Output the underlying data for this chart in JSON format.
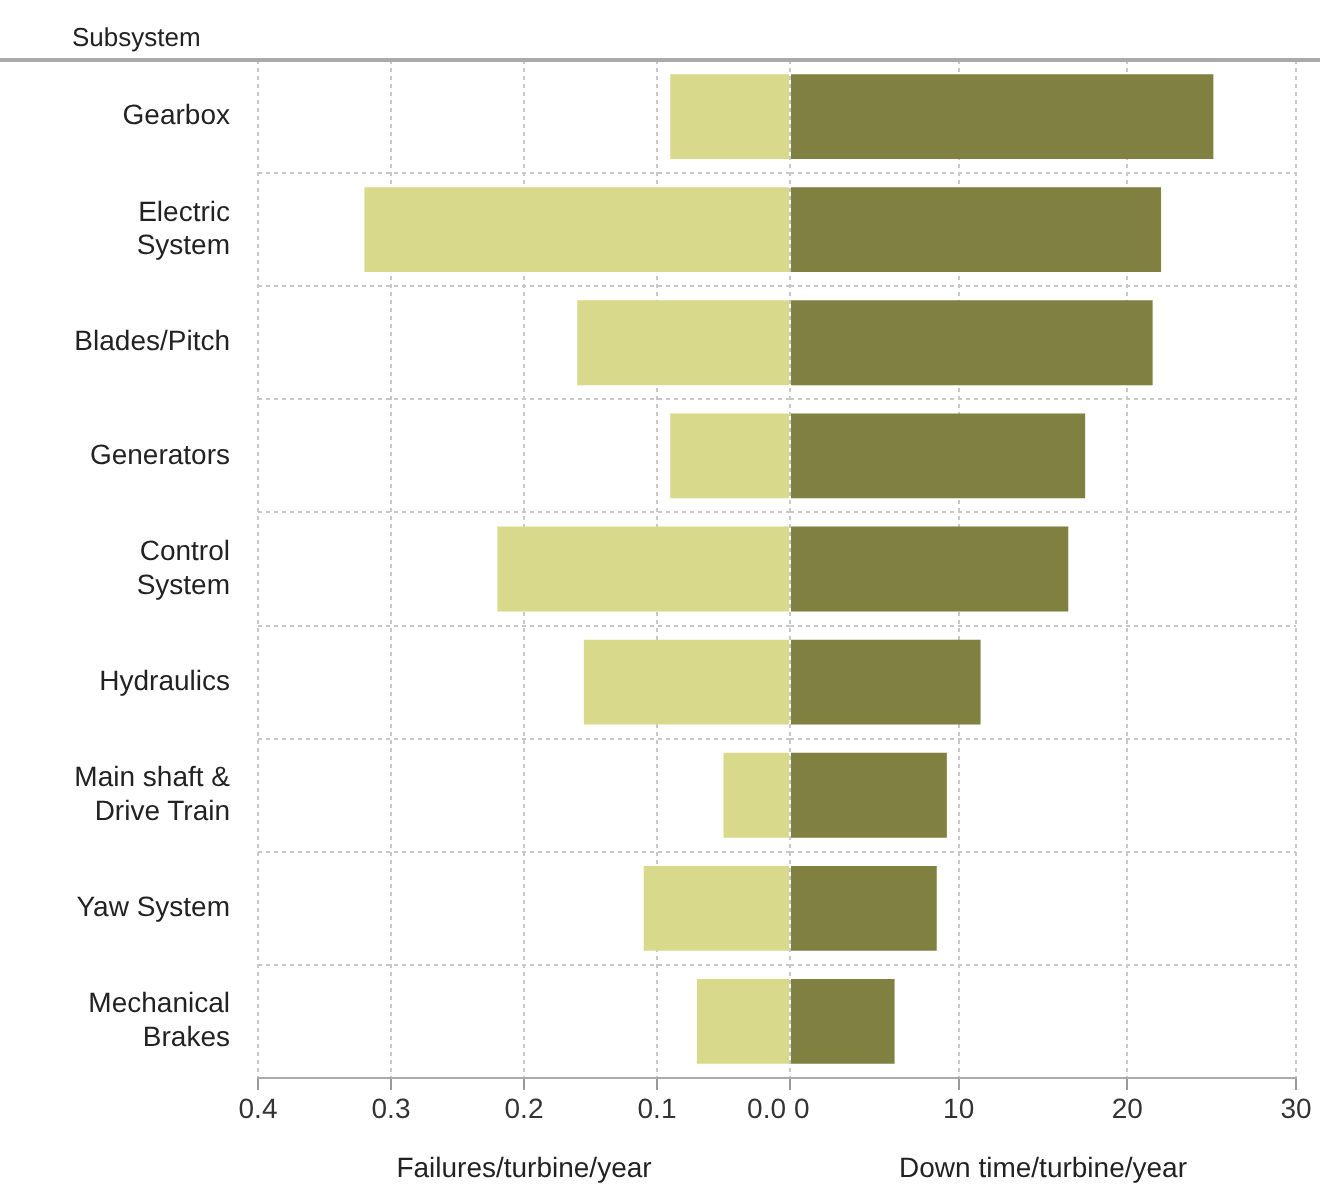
{
  "chart_data": [
    {
      "type": "bar",
      "orientation": "horizontal",
      "ylabel": "Subsystem",
      "xlabel": "Failures/turbine/year",
      "categories": [
        "Gearbox",
        "Electric System",
        "Blades/Pitch",
        "Generators",
        "Control System",
        "Hydraulics",
        "Main shaft & Drive Train",
        "Yaw System",
        "Mechanical Brakes"
      ],
      "values": [
        0.09,
        0.32,
        0.16,
        0.09,
        0.22,
        0.155,
        0.05,
        0.11,
        0.07
      ],
      "color": "#d9d98c",
      "xlim": [
        0.4,
        0
      ],
      "xticks": [
        0.4,
        0.3,
        0.2,
        0.1,
        {
          "value": 0,
          "label": "0.0"
        }
      ],
      "grid": true,
      "legend": false
    },
    {
      "type": "bar",
      "orientation": "horizontal",
      "xlabel": "Down time/turbine/year",
      "categories": [
        null,
        null,
        null,
        null,
        null,
        null,
        null,
        null,
        null
      ],
      "values": [
        25.1,
        22.0,
        21.5,
        17.5,
        16.5,
        11.3,
        9.3,
        8.7,
        6.2
      ],
      "color": "#808040",
      "xlim": [
        0,
        30
      ],
      "xticks": [
        0,
        10,
        20,
        30
      ],
      "grid": true,
      "legend": false
    }
  ]
}
